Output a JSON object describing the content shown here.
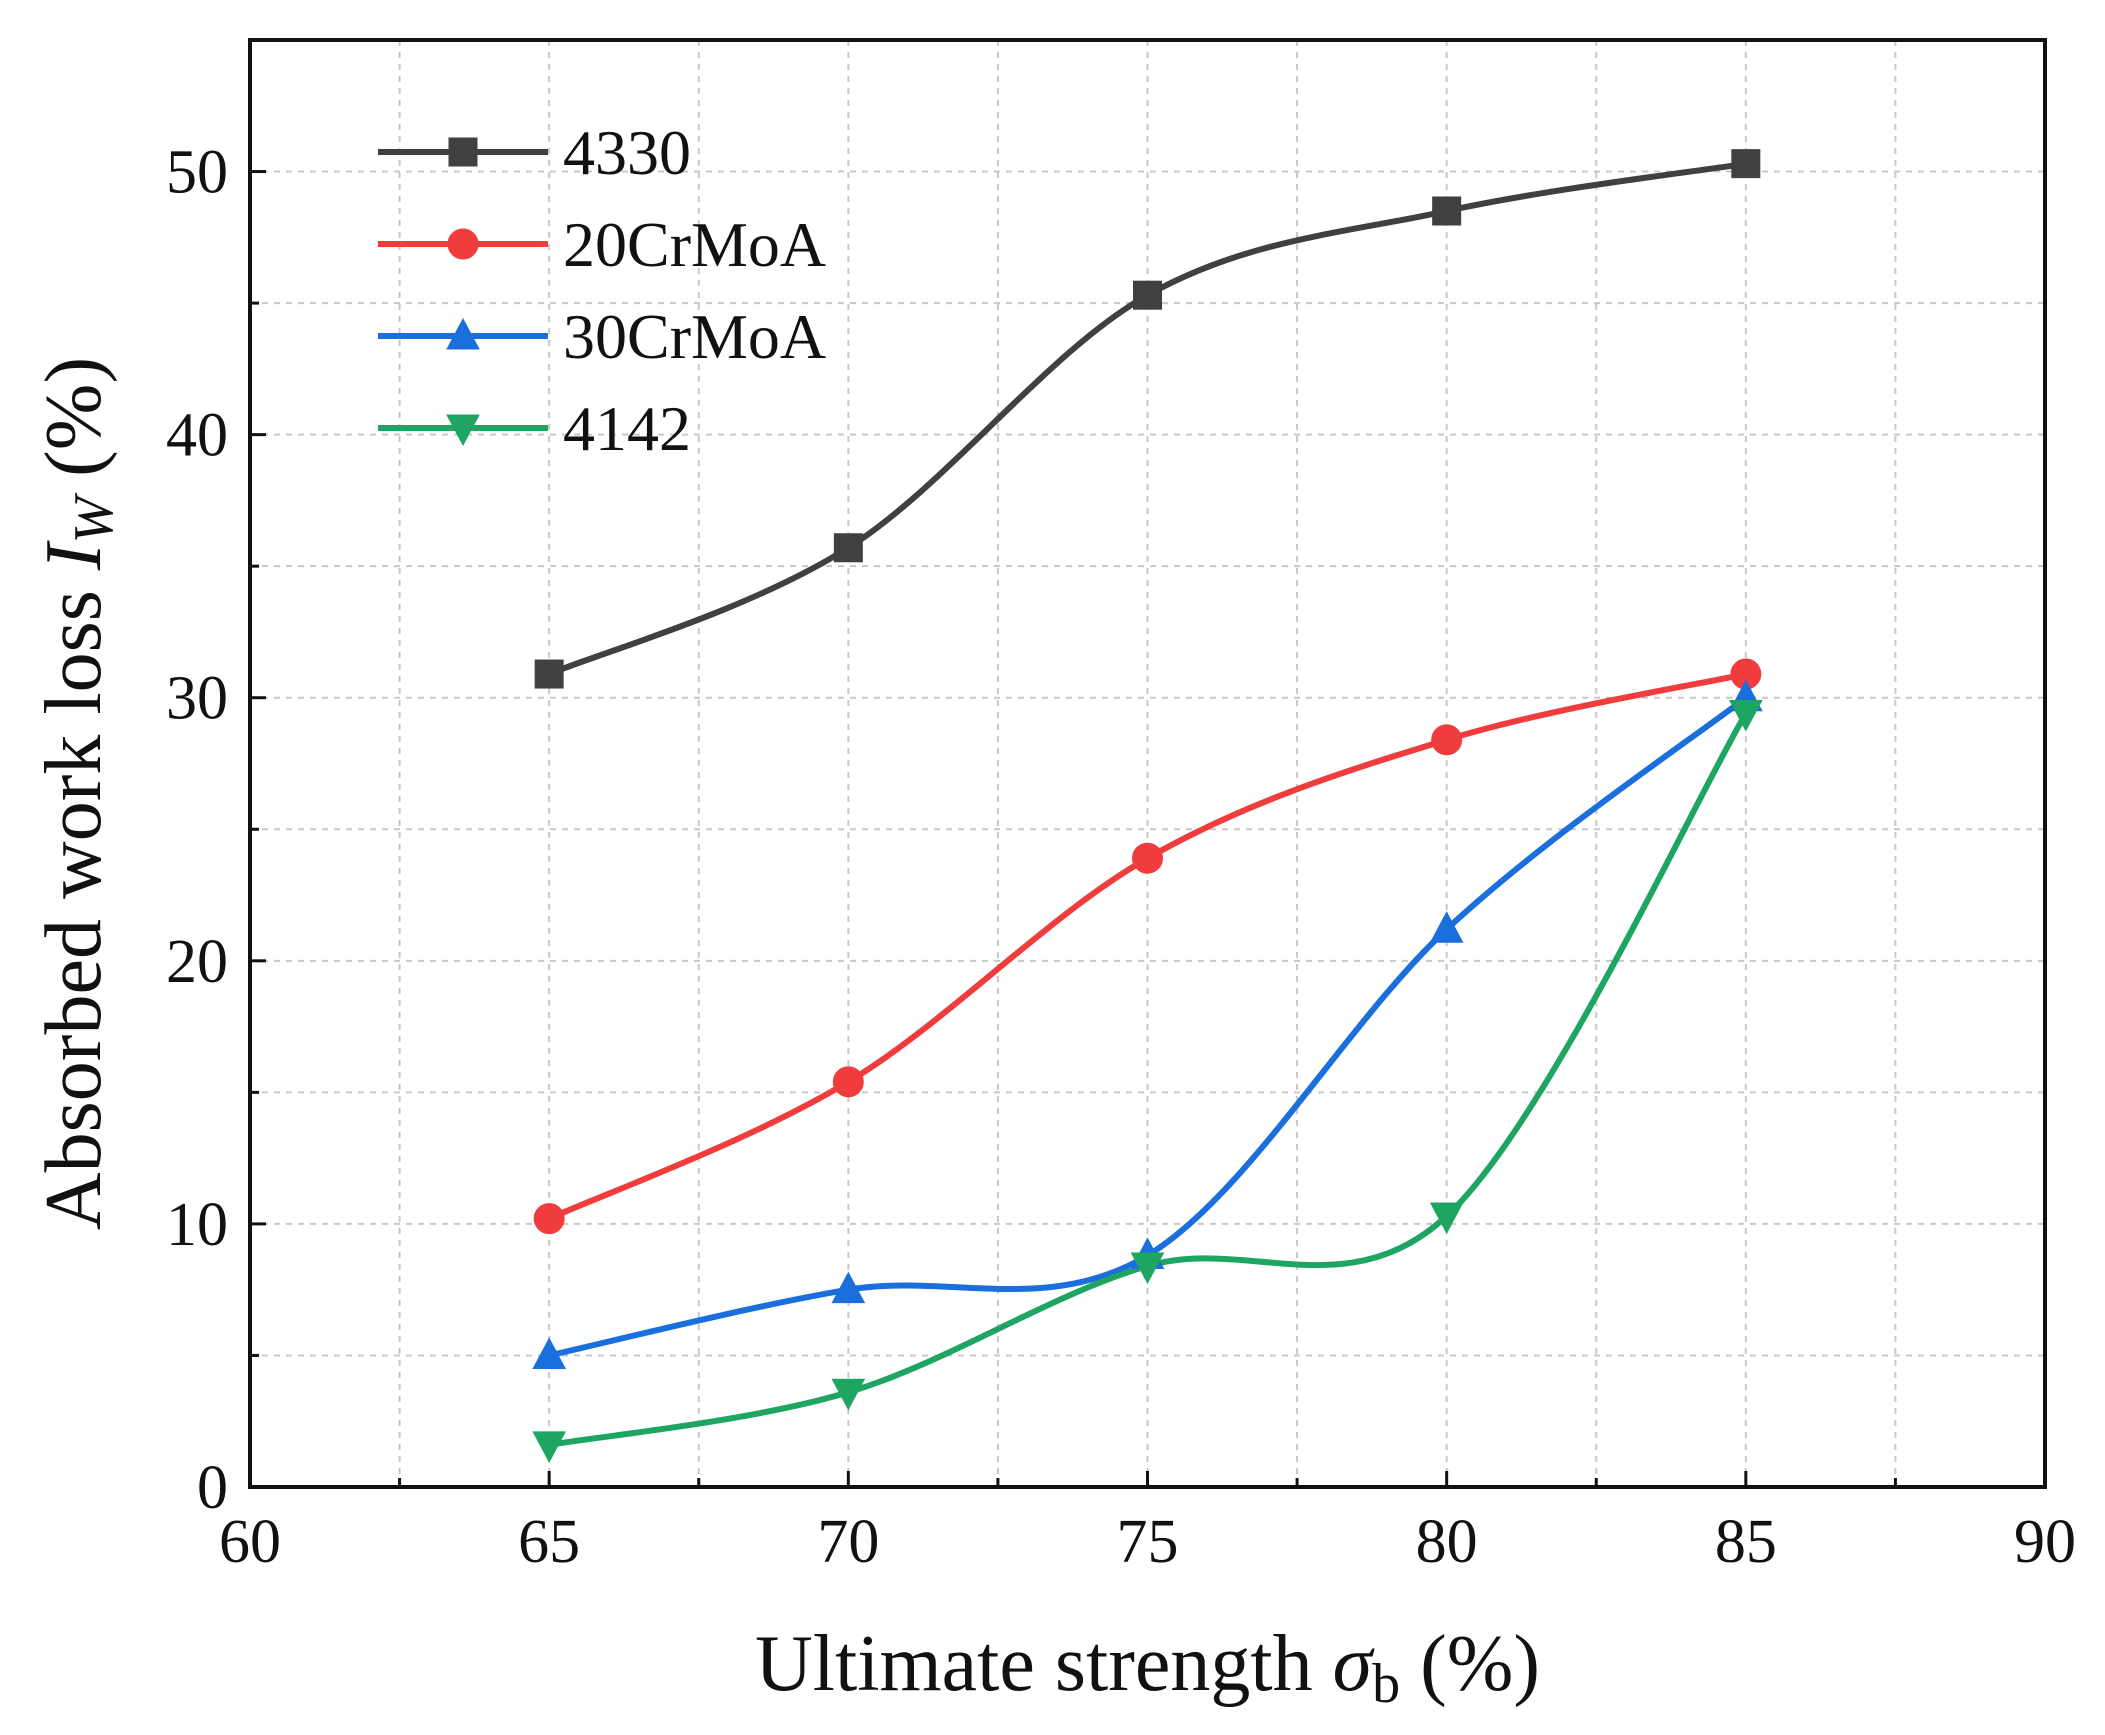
{
  "chart_data": {
    "type": "line",
    "x": [
      65,
      70,
      75,
      80,
      85
    ],
    "series": [
      {
        "name": "4330",
        "values": [
          30.9,
          35.7,
          45.3,
          48.5,
          50.3
        ],
        "color": "#404040",
        "marker": "square"
      },
      {
        "name": "20CrMoA",
        "values": [
          10.2,
          15.4,
          23.9,
          28.4,
          30.9
        ],
        "color": "#f03c3c",
        "marker": "circle"
      },
      {
        "name": "30CrMoA",
        "values": [
          5.0,
          7.5,
          8.8,
          21.2,
          30.0
        ],
        "color": "#1a6fdc",
        "marker": "triangle-up"
      },
      {
        "name": "4142",
        "values": [
          1.6,
          3.6,
          8.4,
          10.3,
          29.4
        ],
        "color": "#1ea562",
        "marker": "triangle-down"
      }
    ],
    "xlabel": {
      "main": "Ultimate strength ",
      "symbol": "σ",
      "sub": "b",
      "unit": " (%)"
    },
    "ylabel": {
      "main": "Absorbed work loss ",
      "symbol": "I",
      "sub": "W",
      "unit": " (%)"
    },
    "xlim": [
      60,
      90
    ],
    "ylim": [
      0,
      55
    ],
    "xticks": [
      60,
      65,
      70,
      75,
      80,
      85,
      90
    ],
    "yticks": [
      0,
      10,
      20,
      30,
      40,
      50
    ],
    "grid": true,
    "legend": "top-left",
    "smooth": true
  }
}
